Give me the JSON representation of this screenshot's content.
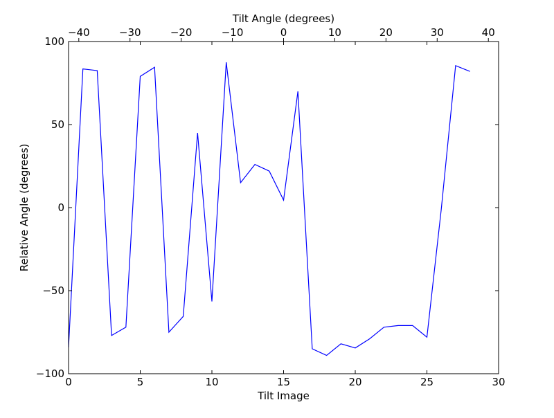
{
  "chart_data": {
    "type": "line",
    "title": "",
    "xlabel": "Tilt Image",
    "ylabel": "Relative Angle (degrees)",
    "top_xlabel": "Tilt Angle (degrees)",
    "xlim": [
      0,
      30
    ],
    "ylim": [
      -100,
      100
    ],
    "top_xlim": [
      -42.0,
      42.0
    ],
    "x_ticks": [
      0,
      5,
      10,
      15,
      20,
      25,
      30
    ],
    "y_ticks": [
      -100,
      -50,
      0,
      50,
      100
    ],
    "top_x_ticks": [
      -40,
      -30,
      -20,
      -10,
      0,
      10,
      20,
      30,
      40
    ],
    "grid": false,
    "line_color": "#0000ff",
    "series": [
      {
        "x": [
          0,
          1,
          2,
          3,
          4,
          5,
          6,
          7,
          8,
          9,
          10,
          11,
          12,
          13,
          14,
          15,
          16,
          17,
          18,
          19,
          20,
          21,
          22,
          23,
          24,
          25,
          26,
          27,
          28
        ],
        "values": [
          -84,
          83.5,
          82.5,
          -77,
          -72,
          79,
          84.5,
          -75,
          -65.5,
          45,
          -56.5,
          87.5,
          15,
          26,
          22,
          4.5,
          70,
          -85,
          -89,
          -82,
          -84.5,
          -79,
          -72,
          -71,
          -71,
          -78,
          -1,
          85.5,
          82
        ]
      }
    ]
  }
}
